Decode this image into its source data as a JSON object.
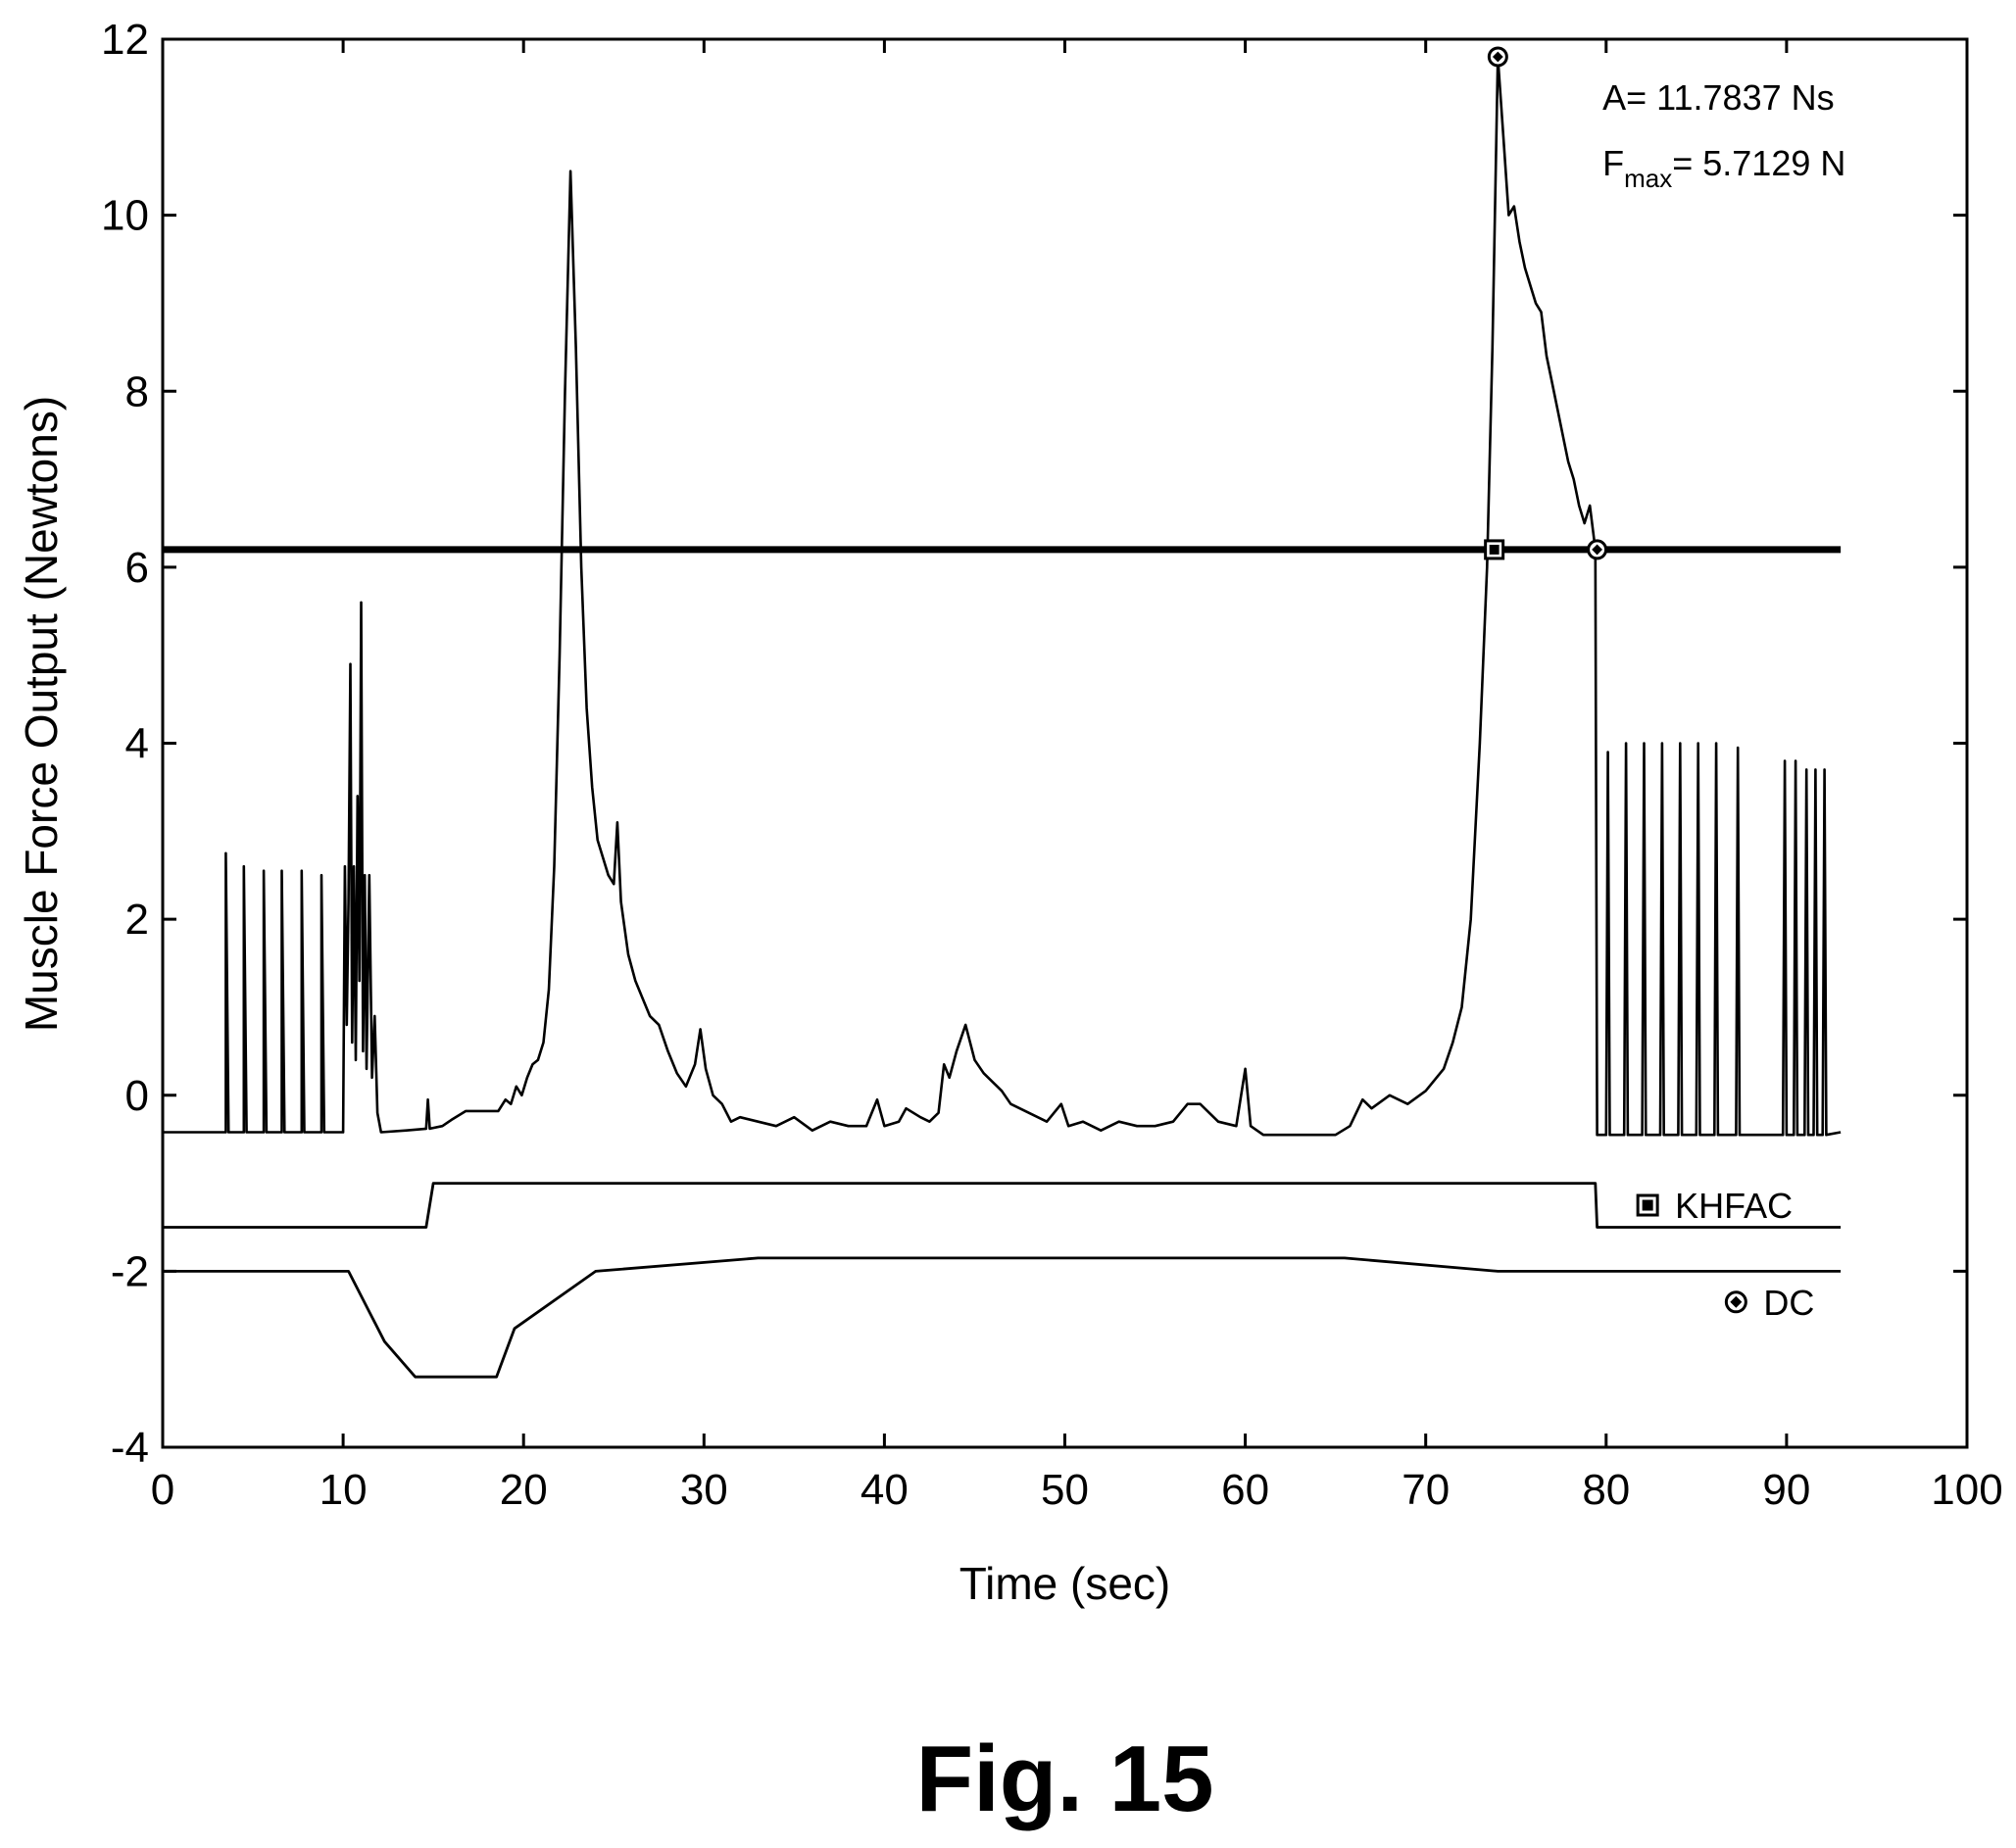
{
  "chart_data": {
    "type": "line",
    "title": "",
    "xlabel": "Time (sec)",
    "ylabel": "Muscle Force Output (Newtons)",
    "xlim": [
      0,
      100
    ],
    "ylim": [
      -4,
      12
    ],
    "xticks": [
      0,
      10,
      20,
      30,
      40,
      50,
      60,
      70,
      80,
      90,
      100
    ],
    "yticks": [
      -4,
      -2,
      0,
      2,
      4,
      6,
      8,
      10,
      12
    ],
    "xtick_labels": [
      "0",
      "10",
      "20",
      "30",
      "40",
      "50",
      "60",
      "70",
      "80",
      "90",
      "100"
    ],
    "ytick_labels": [
      "-4",
      "-2",
      "0",
      "2",
      "4",
      "6",
      "8",
      "10",
      "12"
    ],
    "grid": false,
    "threshold": {
      "y": 6.2,
      "x_range": [
        0,
        93
      ]
    },
    "annotations": {
      "area": {
        "prefix": "A= ",
        "value": "11.7837 Ns"
      },
      "fmax": {
        "symbol": "F",
        "subscript": "max",
        "value": "= 5.7129 N"
      }
    },
    "series": [
      {
        "name": "",
        "style": "force",
        "points": [
          [
            0,
            -0.42
          ],
          [
            3.5,
            -0.42
          ],
          [
            3.5,
            2.75
          ],
          [
            3.65,
            -0.42
          ],
          [
            4.5,
            -0.42
          ],
          [
            4.5,
            2.6
          ],
          [
            4.65,
            -0.42
          ],
          [
            5.6,
            -0.42
          ],
          [
            5.6,
            2.55
          ],
          [
            5.75,
            -0.42
          ],
          [
            6.6,
            -0.42
          ],
          [
            6.6,
            2.55
          ],
          [
            6.75,
            -0.42
          ],
          [
            7.7,
            -0.42
          ],
          [
            7.7,
            2.55
          ],
          [
            7.85,
            -0.42
          ],
          [
            8.8,
            -0.42
          ],
          [
            8.8,
            2.5
          ],
          [
            8.95,
            -0.42
          ],
          [
            9.9,
            -0.42
          ],
          [
            10.0,
            -0.42
          ],
          [
            10.1,
            2.6
          ],
          [
            10.2,
            0.8
          ],
          [
            10.3,
            2.2
          ],
          [
            10.4,
            4.9
          ],
          [
            10.5,
            0.6
          ],
          [
            10.6,
            2.6
          ],
          [
            10.7,
            0.4
          ],
          [
            10.8,
            3.4
          ],
          [
            10.9,
            1.3
          ],
          [
            11.0,
            5.6
          ],
          [
            11.1,
            0.5
          ],
          [
            11.2,
            2.5
          ],
          [
            11.3,
            0.3
          ],
          [
            11.45,
            2.5
          ],
          [
            11.6,
            0.2
          ],
          [
            11.75,
            0.9
          ],
          [
            11.9,
            -0.2
          ],
          [
            12.1,
            -0.42
          ],
          [
            13.5,
            -0.4
          ],
          [
            14.6,
            -0.38
          ],
          [
            14.7,
            -0.05
          ],
          [
            14.8,
            -0.38
          ],
          [
            15.5,
            -0.35
          ],
          [
            16.0,
            -0.28
          ],
          [
            16.8,
            -0.18
          ],
          [
            18.6,
            -0.18
          ],
          [
            19.0,
            -0.05
          ],
          [
            19.3,
            -0.1
          ],
          [
            19.6,
            0.1
          ],
          [
            19.9,
            0.0
          ],
          [
            20.2,
            0.2
          ],
          [
            20.5,
            0.35
          ],
          [
            20.8,
            0.4
          ],
          [
            21.1,
            0.6
          ],
          [
            21.4,
            1.2
          ],
          [
            21.7,
            2.6
          ],
          [
            22.0,
            5.0
          ],
          [
            22.3,
            8.0
          ],
          [
            22.6,
            10.5
          ],
          [
            22.9,
            8.5
          ],
          [
            23.2,
            6.0
          ],
          [
            23.5,
            4.4
          ],
          [
            23.8,
            3.5
          ],
          [
            24.1,
            2.9
          ],
          [
            24.4,
            2.7
          ],
          [
            24.7,
            2.5
          ],
          [
            25.0,
            2.4
          ],
          [
            25.2,
            3.1
          ],
          [
            25.4,
            2.2
          ],
          [
            25.8,
            1.6
          ],
          [
            26.2,
            1.3
          ],
          [
            26.6,
            1.1
          ],
          [
            27.0,
            0.9
          ],
          [
            27.5,
            0.8
          ],
          [
            28.0,
            0.5
          ],
          [
            28.5,
            0.25
          ],
          [
            29.0,
            0.1
          ],
          [
            29.5,
            0.35
          ],
          [
            29.8,
            0.75
          ],
          [
            30.1,
            0.3
          ],
          [
            30.5,
            0.0
          ],
          [
            31.0,
            -0.1
          ],
          [
            31.5,
            -0.3
          ],
          [
            32.0,
            -0.25
          ],
          [
            33.0,
            -0.3
          ],
          [
            34.0,
            -0.35
          ],
          [
            35.0,
            -0.25
          ],
          [
            36.0,
            -0.4
          ],
          [
            37.0,
            -0.3
          ],
          [
            38.0,
            -0.35
          ],
          [
            39.0,
            -0.35
          ],
          [
            39.6,
            -0.05
          ],
          [
            40.0,
            -0.35
          ],
          [
            40.8,
            -0.3
          ],
          [
            41.2,
            -0.15
          ],
          [
            42.0,
            -0.25
          ],
          [
            42.5,
            -0.3
          ],
          [
            43.0,
            -0.2
          ],
          [
            43.3,
            0.35
          ],
          [
            43.6,
            0.2
          ],
          [
            44.0,
            0.5
          ],
          [
            44.5,
            0.8
          ],
          [
            45.0,
            0.4
          ],
          [
            45.5,
            0.25
          ],
          [
            46.0,
            0.15
          ],
          [
            46.5,
            0.05
          ],
          [
            47.0,
            -0.1
          ],
          [
            48.0,
            -0.2
          ],
          [
            49.0,
            -0.3
          ],
          [
            49.8,
            -0.1
          ],
          [
            50.2,
            -0.35
          ],
          [
            51.0,
            -0.3
          ],
          [
            52.0,
            -0.4
          ],
          [
            53.0,
            -0.3
          ],
          [
            54.0,
            -0.35
          ],
          [
            55.0,
            -0.35
          ],
          [
            56.0,
            -0.3
          ],
          [
            56.8,
            -0.1
          ],
          [
            57.5,
            -0.1
          ],
          [
            58.5,
            -0.3
          ],
          [
            59.5,
            -0.35
          ],
          [
            60.0,
            0.3
          ],
          [
            60.3,
            -0.35
          ],
          [
            61.0,
            -0.45
          ],
          [
            62.0,
            -0.45
          ],
          [
            63.0,
            -0.45
          ],
          [
            64.0,
            -0.45
          ],
          [
            65.0,
            -0.45
          ],
          [
            65.8,
            -0.35
          ],
          [
            66.5,
            -0.05
          ],
          [
            67.0,
            -0.15
          ],
          [
            68.0,
            0.0
          ],
          [
            69.0,
            -0.1
          ],
          [
            70.0,
            0.05
          ],
          [
            71.0,
            0.3
          ],
          [
            71.5,
            0.6
          ],
          [
            72.0,
            1.0
          ],
          [
            72.5,
            2.0
          ],
          [
            73.0,
            4.0
          ],
          [
            73.4,
            6.0
          ],
          [
            73.7,
            8.5
          ],
          [
            74.0,
            11.8
          ],
          [
            74.3,
            10.9
          ],
          [
            74.6,
            10.0
          ],
          [
            74.9,
            10.1
          ],
          [
            75.2,
            9.7
          ],
          [
            75.5,
            9.4
          ],
          [
            75.8,
            9.2
          ],
          [
            76.1,
            9.0
          ],
          [
            76.4,
            8.9
          ],
          [
            76.7,
            8.4
          ],
          [
            77.0,
            8.1
          ],
          [
            77.3,
            7.8
          ],
          [
            77.6,
            7.5
          ],
          [
            77.9,
            7.2
          ],
          [
            78.2,
            7.0
          ],
          [
            78.5,
            6.7
          ],
          [
            78.8,
            6.5
          ],
          [
            79.1,
            6.7
          ],
          [
            79.4,
            6.2
          ],
          [
            79.5,
            -0.45
          ],
          [
            80.0,
            -0.45
          ],
          [
            80.1,
            3.9
          ],
          [
            80.2,
            -0.45
          ],
          [
            81.0,
            -0.45
          ],
          [
            81.1,
            4.0
          ],
          [
            81.2,
            -0.45
          ],
          [
            82.0,
            -0.45
          ],
          [
            82.1,
            4.0
          ],
          [
            82.2,
            -0.45
          ],
          [
            83.0,
            -0.45
          ],
          [
            83.1,
            4.0
          ],
          [
            83.2,
            -0.45
          ],
          [
            84.0,
            -0.45
          ],
          [
            84.1,
            4.0
          ],
          [
            84.2,
            -0.45
          ],
          [
            85.0,
            -0.45
          ],
          [
            85.1,
            4.0
          ],
          [
            85.2,
            -0.45
          ],
          [
            86.0,
            -0.45
          ],
          [
            86.1,
            4.0
          ],
          [
            86.2,
            -0.45
          ],
          [
            87.2,
            -0.45
          ],
          [
            87.3,
            3.95
          ],
          [
            87.4,
            -0.45
          ],
          [
            89.8,
            -0.45
          ],
          [
            89.9,
            3.8
          ],
          [
            90.0,
            -0.45
          ],
          [
            90.4,
            -0.45
          ],
          [
            90.5,
            3.8
          ],
          [
            90.6,
            -0.45
          ],
          [
            91.0,
            -0.45
          ],
          [
            91.1,
            3.7
          ],
          [
            91.2,
            -0.45
          ],
          [
            91.5,
            -0.45
          ],
          [
            91.6,
            3.7
          ],
          [
            91.7,
            -0.45
          ],
          [
            92.0,
            -0.45
          ],
          [
            92.1,
            3.7
          ],
          [
            92.2,
            -0.45
          ],
          [
            93.0,
            -0.42
          ]
        ]
      },
      {
        "name": "KHFAC",
        "style": "stim",
        "points": [
          [
            0,
            -1.5
          ],
          [
            14.6,
            -1.5
          ],
          [
            15.0,
            -1.0
          ],
          [
            79.4,
            -1.0
          ],
          [
            79.5,
            -1.5
          ],
          [
            93.0,
            -1.5
          ]
        ]
      },
      {
        "name": "DC",
        "style": "stim",
        "points": [
          [
            0,
            -2.0
          ],
          [
            10.3,
            -2.0
          ],
          [
            12.3,
            -2.8
          ],
          [
            14.0,
            -3.2
          ],
          [
            18.5,
            -3.2
          ],
          [
            19.5,
            -2.65
          ],
          [
            24.0,
            -2.0
          ],
          [
            33.0,
            -1.85
          ],
          [
            65.5,
            -1.85
          ],
          [
            74.0,
            -2.0
          ],
          [
            93.0,
            -2.0
          ]
        ]
      }
    ],
    "markers": [
      {
        "x": 74.0,
        "y": 11.8,
        "kind": "dc"
      },
      {
        "x": 73.8,
        "y": 6.2,
        "kind": "khfac"
      },
      {
        "x": 79.5,
        "y": 6.2,
        "kind": "dc"
      }
    ],
    "legend": {
      "placement": "right",
      "entries": [
        {
          "label": "KHFAC",
          "symbol": "filled-square",
          "y": -1.25
        },
        {
          "label": "DC",
          "symbol": "hatched-diamond",
          "y": -2.35
        }
      ]
    }
  },
  "figure_caption": "Fig. 15"
}
